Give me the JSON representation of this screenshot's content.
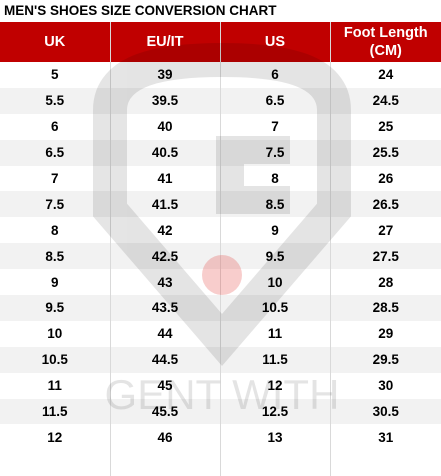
{
  "title": "MEN'S SHOES SIZE CONVERSION CHART",
  "table": {
    "header": [
      "UK",
      "EU/IT",
      "US",
      "Foot Length (CM)"
    ],
    "rows": [
      [
        "5",
        "39",
        "6",
        "24"
      ],
      [
        "5.5",
        "39.5",
        "6.5",
        "24.5"
      ],
      [
        "6",
        "40",
        "7",
        "25"
      ],
      [
        "6.5",
        "40.5",
        "7.5",
        "25.5"
      ],
      [
        "7",
        "41",
        "8",
        "26"
      ],
      [
        "7.5",
        "41.5",
        "8.5",
        "26.5"
      ],
      [
        "8",
        "42",
        "9",
        "27"
      ],
      [
        "8.5",
        "42.5",
        "9.5",
        "27.5"
      ],
      [
        "9",
        "43",
        "10",
        "28"
      ],
      [
        "9.5",
        "43.5",
        "10.5",
        "28.5"
      ],
      [
        "10",
        "44",
        "11",
        "29"
      ],
      [
        "10.5",
        "44.5",
        "11.5",
        "29.5"
      ],
      [
        "11",
        "45",
        "12",
        "30"
      ],
      [
        "11.5",
        "45.5",
        "12.5",
        "30.5"
      ],
      [
        "12",
        "46",
        "13",
        "31"
      ]
    ]
  },
  "watermark": "GENT WITH"
}
